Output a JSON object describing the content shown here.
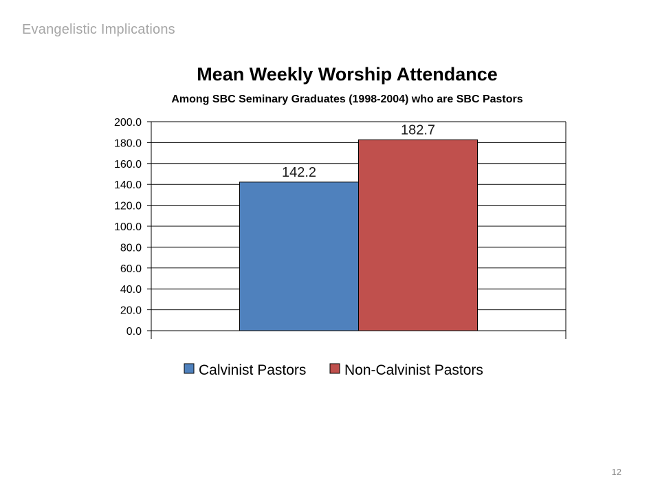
{
  "slide": {
    "header": "Evangelistic Implications",
    "page_number": "12"
  },
  "chart_data": {
    "type": "bar",
    "title": "Mean Weekly Worship Attendance",
    "subtitle": "Among SBC Seminary Graduates (1998-2004) who are SBC Pastors",
    "xlabel": "",
    "ylabel": "",
    "ylim": [
      0,
      200
    ],
    "ytick_step": 20,
    "ytick_labels": [
      "0.0",
      "20.0",
      "40.0",
      "60.0",
      "80.0",
      "100.0",
      "120.0",
      "140.0",
      "160.0",
      "180.0",
      "200.0"
    ],
    "grid": true,
    "legend_position": "bottom",
    "series": [
      {
        "name": "Calvinist Pastors",
        "value": 142.2,
        "label": "142.2",
        "color": "#4f81bd"
      },
      {
        "name": "Non-Calvinist Pastors",
        "value": 182.7,
        "label": "182.7",
        "color": "#c0504d"
      }
    ]
  }
}
